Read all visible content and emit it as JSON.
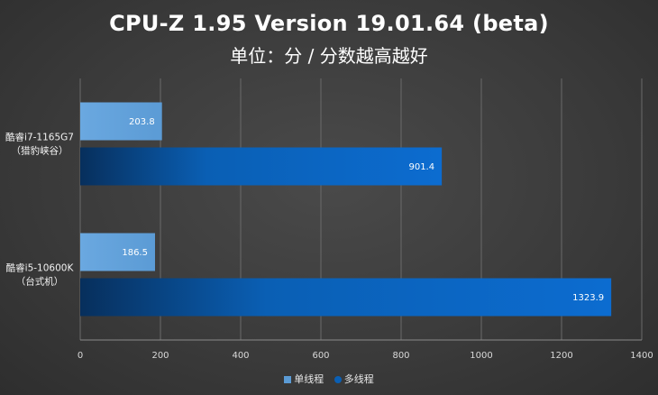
{
  "chart_data": {
    "type": "bar",
    "orientation": "horizontal",
    "title": "CPU-Z 1.95 Version 19.01.64 (beta)",
    "subtitle": "单位：分 / 分数越高越好",
    "categories": [
      {
        "line1": "酷睿i7-1165G7",
        "line2": "（猎豹峡谷）"
      },
      {
        "line1": "酷睿i5-10600K",
        "line2": "（台式机）"
      }
    ],
    "series": [
      {
        "name": "单线程",
        "values": [
          203.8,
          186.5
        ],
        "color": "#5b9bd5",
        "label_color": "#ffffff"
      },
      {
        "name": "多线程",
        "values": [
          901.4,
          1323.9
        ],
        "color": "#0a5fb4",
        "label_color": "#ffffff"
      }
    ],
    "xlim": [
      0,
      1400
    ],
    "xticks": [
      "0",
      "200",
      "400",
      "600",
      "800",
      "1000",
      "1200",
      "1400"
    ],
    "grid": true,
    "legend_position": "bottom"
  }
}
